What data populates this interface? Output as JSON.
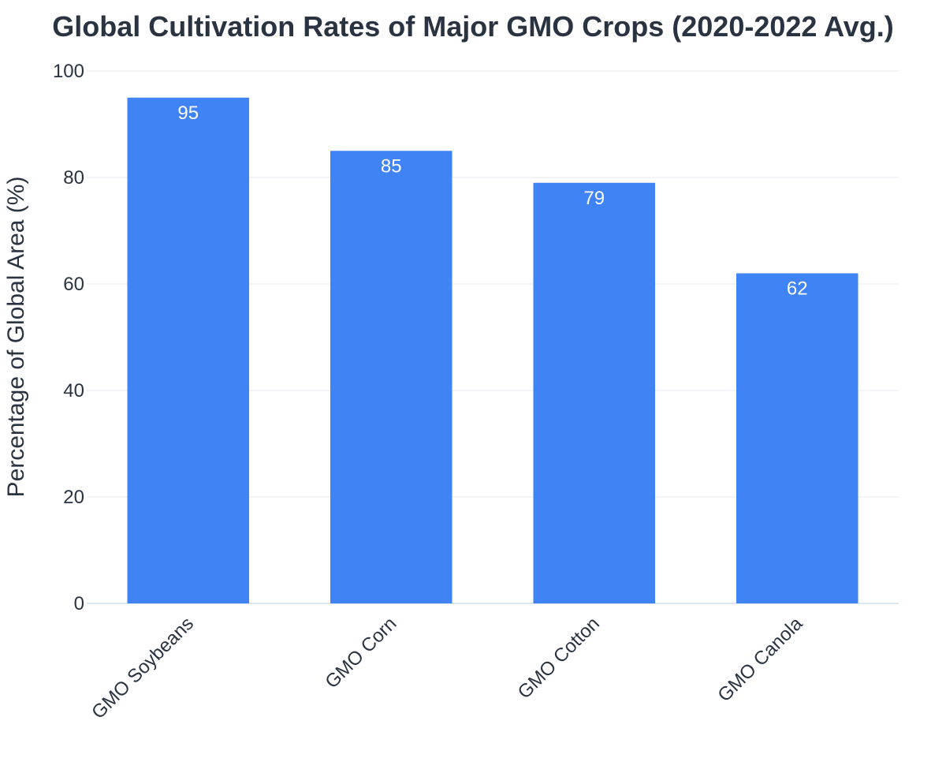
{
  "chart_data": {
    "type": "bar",
    "title": "Global Cultivation Rates of Major GMO Crops (2020-2022 Avg.)",
    "xlabel": "",
    "ylabel": "Percentage of Global Area (%)",
    "categories": [
      "GMO Soybeans",
      "GMO Corn",
      "GMO Cotton",
      "GMO Canola"
    ],
    "values": [
      95,
      85,
      79,
      62
    ],
    "ylim": [
      0,
      100
    ],
    "yticks": [
      0,
      20,
      40,
      60,
      80,
      100
    ],
    "grid": true,
    "data_labels": true,
    "legend": "none",
    "colors": {
      "bar": "#3f83f4",
      "grid": "#edf1f5",
      "axis_line": "#dce7f3",
      "text": "#2a3342",
      "label": "#ffffff"
    }
  }
}
